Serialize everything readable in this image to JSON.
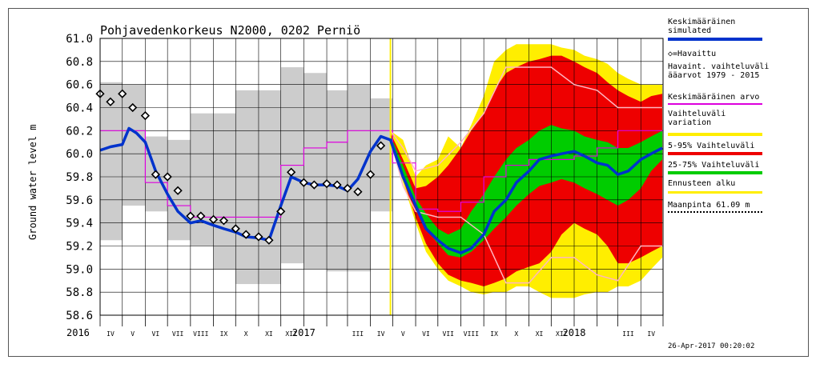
{
  "chart_data": {
    "type": "area",
    "title": "Pohjavedenkorkeus N2000, 0202 Perniö",
    "ylabel": "Ground water level m",
    "ylim": [
      58.6,
      61.0
    ],
    "yticks": [
      "61.0",
      "60.8",
      "60.6",
      "60.4",
      "60.2",
      "60.0",
      "59.8",
      "59.6",
      "59.4",
      "59.2",
      "59.0",
      "58.8",
      "58.6"
    ],
    "xlim": [
      "2016-04-01",
      "2018-05-01"
    ],
    "year_labels": [
      {
        "label": "2016",
        "date": "2016-01-01"
      },
      {
        "label": "2017",
        "date": "2017-01-01"
      },
      {
        "label": "2018",
        "date": "2018-01-01"
      }
    ],
    "month_labels": [
      {
        "label": "IV",
        "date": "2016-04-15"
      },
      {
        "label": "V",
        "date": "2016-05-15"
      },
      {
        "label": "VI",
        "date": "2016-06-15"
      },
      {
        "label": "VII",
        "date": "2016-07-15"
      },
      {
        "label": "VIII",
        "date": "2016-08-15"
      },
      {
        "label": "IX",
        "date": "2016-09-15"
      },
      {
        "label": "X",
        "date": "2016-10-15"
      },
      {
        "label": "XI",
        "date": "2016-11-15"
      },
      {
        "label": "XII",
        "date": "2016-12-15"
      },
      {
        "label": "III",
        "date": "2017-03-15"
      },
      {
        "label": "IV",
        "date": "2017-04-15"
      },
      {
        "label": "V",
        "date": "2017-05-15"
      },
      {
        "label": "VI",
        "date": "2017-06-15"
      },
      {
        "label": "VII",
        "date": "2017-07-15"
      },
      {
        "label": "VIII",
        "date": "2017-08-15"
      },
      {
        "label": "IX",
        "date": "2017-09-15"
      },
      {
        "label": "X",
        "date": "2017-10-15"
      },
      {
        "label": "XI",
        "date": "2017-11-15"
      },
      {
        "label": "XII",
        "date": "2017-12-15"
      },
      {
        "label": "III",
        "date": "2018-03-15"
      },
      {
        "label": "IV",
        "date": "2018-04-15"
      }
    ],
    "forecast_start": "2017-04-28",
    "observed_range": {
      "name": "Havaint. vaihteluväli ääarvot 1979 - 2015",
      "months": [
        "2016-04",
        "2016-05",
        "2016-06",
        "2016-07",
        "2016-08",
        "2016-09",
        "2016-10",
        "2016-11",
        "2016-12",
        "2017-01",
        "2017-02",
        "2017-03",
        "2017-04"
      ],
      "min": [
        59.25,
        59.55,
        59.5,
        59.25,
        59.2,
        59.0,
        58.87,
        58.87,
        59.05,
        59.0,
        58.98,
        58.98,
        59.5
      ],
      "max": [
        60.62,
        60.6,
        60.15,
        60.12,
        60.35,
        60.35,
        60.55,
        60.55,
        60.75,
        60.7,
        60.55,
        60.6,
        60.48
      ]
    },
    "mean_monthly": {
      "name": "Keskimääräinen arvo",
      "months": [
        "2016-04",
        "2016-05",
        "2016-06",
        "2016-07",
        "2016-08",
        "2016-09",
        "2016-10",
        "2016-11",
        "2016-12",
        "2017-01",
        "2017-02",
        "2017-03",
        "2017-04",
        "2017-05",
        "2017-06",
        "2017-07",
        "2017-08",
        "2017-09",
        "2017-10",
        "2017-11",
        "2017-12",
        "2018-01",
        "2018-02",
        "2018-03",
        "2018-04"
      ],
      "values": [
        60.2,
        60.2,
        59.75,
        59.55,
        59.45,
        59.45,
        59.45,
        59.45,
        59.9,
        60.05,
        60.1,
        60.2,
        60.2,
        59.92,
        59.52,
        59.5,
        59.58,
        59.8,
        59.9,
        59.95,
        59.95,
        59.98,
        60.05,
        60.2,
        60.2
      ]
    },
    "ground_surface": {
      "name": "Maanpinta 61.09 m",
      "value": 61.09
    },
    "simulated": {
      "name": "Keskimääräinen simulated",
      "x": [
        "2016-04-01",
        "2016-04-15",
        "2016-05-01",
        "2016-05-10",
        "2016-05-20",
        "2016-06-01",
        "2016-06-15",
        "2016-07-01",
        "2016-07-15",
        "2016-08-01",
        "2016-08-15",
        "2016-09-01",
        "2016-09-15",
        "2016-10-01",
        "2016-10-15",
        "2016-11-01",
        "2016-11-15",
        "2016-12-01",
        "2016-12-15",
        "2017-01-01",
        "2017-01-15",
        "2017-02-01",
        "2017-02-15",
        "2017-03-01",
        "2017-03-15",
        "2017-04-01",
        "2017-04-15",
        "2017-04-28",
        "2017-05-15",
        "2017-06-01",
        "2017-06-15",
        "2017-07-01",
        "2017-07-15",
        "2017-08-01",
        "2017-08-15",
        "2017-09-01",
        "2017-09-15",
        "2017-10-01",
        "2017-10-15",
        "2017-11-01",
        "2017-11-15",
        "2017-12-01",
        "2017-12-15",
        "2018-01-01",
        "2018-01-15",
        "2018-02-01",
        "2018-02-15",
        "2018-03-01",
        "2018-03-15",
        "2018-04-01",
        "2018-04-15",
        "2018-04-30"
      ],
      "y": [
        60.03,
        60.06,
        60.08,
        60.22,
        60.18,
        60.1,
        59.85,
        59.65,
        59.5,
        59.4,
        59.42,
        59.38,
        59.35,
        59.32,
        59.28,
        59.27,
        59.25,
        59.55,
        59.8,
        59.75,
        59.73,
        59.73,
        59.72,
        59.68,
        59.78,
        60.02,
        60.15,
        60.12,
        59.8,
        59.55,
        59.35,
        59.25,
        59.18,
        59.14,
        59.18,
        59.3,
        59.5,
        59.6,
        59.75,
        59.85,
        59.95,
        59.98,
        60.0,
        60.02,
        59.98,
        59.92,
        59.9,
        59.82,
        59.85,
        59.95,
        60.0,
        60.05
      ]
    },
    "observed": {
      "name": "Havaittu",
      "x": [
        "2016-04-01",
        "2016-04-15",
        "2016-05-01",
        "2016-05-15",
        "2016-06-01",
        "2016-06-15",
        "2016-07-01",
        "2016-07-15",
        "2016-08-01",
        "2016-08-15",
        "2016-09-01",
        "2016-09-15",
        "2016-10-01",
        "2016-10-15",
        "2016-11-01",
        "2016-11-15",
        "2016-12-01",
        "2016-12-15",
        "2017-01-01",
        "2017-01-15",
        "2017-02-01",
        "2017-02-15",
        "2017-03-01",
        "2017-03-15",
        "2017-04-01",
        "2017-04-15"
      ],
      "y": [
        60.52,
        60.45,
        60.52,
        60.4,
        60.33,
        59.82,
        59.8,
        59.68,
        59.46,
        59.46,
        59.43,
        59.42,
        59.35,
        59.3,
        59.28,
        59.25,
        59.5,
        59.84,
        59.75,
        59.73,
        59.74,
        59.73,
        59.7,
        59.67,
        59.82,
        60.07
      ]
    },
    "forecast_bands": {
      "x": [
        "2017-04-28",
        "2017-05-15",
        "2017-06-01",
        "2017-06-15",
        "2017-07-01",
        "2017-07-15",
        "2017-08-01",
        "2017-08-15",
        "2017-09-01",
        "2017-09-15",
        "2017-10-01",
        "2017-10-15",
        "2017-11-01",
        "2017-11-15",
        "2017-12-01",
        "2017-12-15",
        "2018-01-01",
        "2018-01-15",
        "2018-02-01",
        "2018-02-15",
        "2018-03-01",
        "2018-03-15",
        "2018-04-01",
        "2018-04-15",
        "2018-04-30"
      ],
      "variation": {
        "name": "Vaihteluväli variation",
        "low": [
          60.12,
          59.75,
          59.4,
          59.15,
          59.0,
          58.9,
          58.85,
          58.8,
          58.78,
          58.8,
          58.8,
          58.85,
          58.85,
          58.8,
          58.75,
          58.75,
          58.75,
          58.78,
          58.8,
          58.8,
          58.85,
          58.85,
          58.9,
          59.0,
          59.1
        ],
        "high": [
          60.2,
          60.12,
          59.8,
          59.9,
          59.95,
          60.15,
          60.05,
          60.25,
          60.5,
          60.8,
          60.9,
          60.95,
          60.95,
          60.95,
          60.95,
          60.92,
          60.9,
          60.85,
          60.82,
          60.78,
          60.7,
          60.65,
          60.6,
          60.6,
          60.6
        ]
      },
      "p5_95": {
        "name": "5-95% Vaihteluväli",
        "low": [
          60.12,
          59.78,
          59.45,
          59.22,
          59.05,
          58.95,
          58.9,
          58.88,
          58.85,
          58.88,
          58.92,
          58.98,
          59.02,
          59.05,
          59.15,
          59.3,
          59.4,
          59.35,
          59.3,
          59.2,
          59.05,
          59.05,
          59.1,
          59.15,
          59.2
        ],
        "high": [
          60.18,
          59.95,
          59.7,
          59.72,
          59.8,
          59.9,
          60.05,
          60.2,
          60.35,
          60.55,
          60.7,
          60.75,
          60.8,
          60.82,
          60.85,
          60.85,
          60.8,
          60.75,
          60.7,
          60.62,
          60.55,
          60.5,
          60.45,
          60.5,
          60.52
        ]
      },
      "p25_75": {
        "name": "25-75% Vaihteluväli",
        "low": [
          60.14,
          59.82,
          59.52,
          59.35,
          59.22,
          59.12,
          59.1,
          59.15,
          59.25,
          59.35,
          59.45,
          59.55,
          59.65,
          59.72,
          59.75,
          59.78,
          59.75,
          59.7,
          59.65,
          59.6,
          59.55,
          59.6,
          59.7,
          59.85,
          59.95
        ],
        "high": [
          60.16,
          59.9,
          59.62,
          59.48,
          59.35,
          59.3,
          59.35,
          59.5,
          59.65,
          59.8,
          59.95,
          60.05,
          60.12,
          60.2,
          60.25,
          60.22,
          60.2,
          60.15,
          60.12,
          60.1,
          60.05,
          60.05,
          60.1,
          60.15,
          60.2
        ]
      }
    },
    "forecast_minmax": {
      "x": [
        "2017-04-28",
        "2017-05-15",
        "2017-06-01",
        "2017-07-01",
        "2017-08-01",
        "2017-09-01",
        "2017-10-01",
        "2017-11-01",
        "2017-12-01",
        "2018-01-01",
        "2018-02-01",
        "2018-03-01",
        "2018-04-01",
        "2018-04-30"
      ],
      "min": [
        60.12,
        59.72,
        59.5,
        59.45,
        59.45,
        59.3,
        58.88,
        58.88,
        59.1,
        59.1,
        58.95,
        58.9,
        59.2,
        59.2
      ],
      "max": [
        60.2,
        60.05,
        59.85,
        59.9,
        60.1,
        60.35,
        60.75,
        60.75,
        60.75,
        60.6,
        60.55,
        60.4,
        60.4,
        60.4
      ]
    },
    "legend": [
      {
        "label": "Keskimääräinen\nsimulated",
        "color": "#0033cc"
      },
      {
        "label": "◇=Havaittu",
        "color": "#000000"
      },
      {
        "label": "Havaint. vaihteluväli\nääarvot 1979 - 2015",
        "color": "#cccccc"
      },
      {
        "label": "Keskimääräinen arvo",
        "color": "#dd00dd"
      },
      {
        "label": "Vaihteluväli\nvariation",
        "color": "#ffee00"
      },
      {
        "label": "5-95% Vaihteluväli",
        "color": "#ee0000"
      },
      {
        "label": "25-75% Vaihteluväli",
        "color": "#00cc00"
      },
      {
        "label": "Ennusteen alku",
        "color": "#ffee00"
      },
      {
        "label": "Maanpinta 61.09 m",
        "color": "#000000"
      }
    ],
    "grid": true
  },
  "timestamp": "26-Apr-2017 00:20:02",
  "colors": {
    "simulated": "#0033cc",
    "observed_range": "#cccccc",
    "mean": "#dd00dd",
    "variation": "#ffee00",
    "p5_95": "#ee0000",
    "p25_75": "#00cc00",
    "forecast_line": "#ffee00",
    "minmax_line": "#ffb6c1"
  }
}
